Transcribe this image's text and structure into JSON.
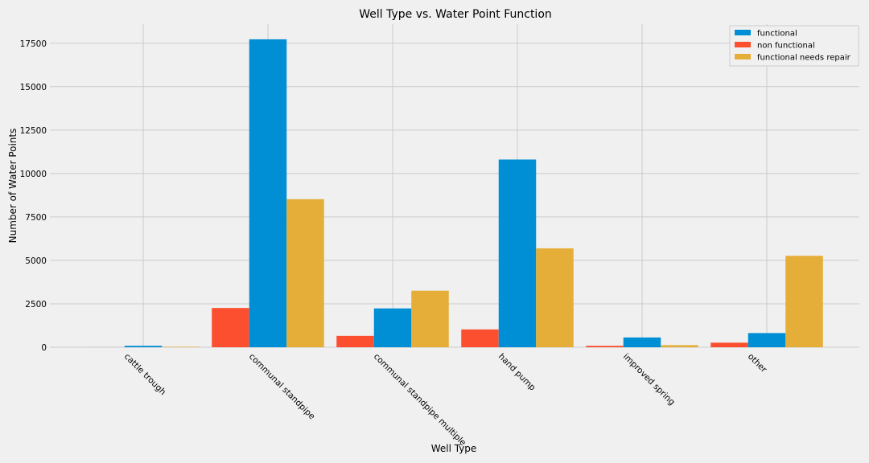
{
  "chart_data": {
    "type": "bar",
    "title": "Well Type vs. Water Point Function",
    "xlabel": "Well Type",
    "ylabel": "Number of Water Points",
    "categories": [
      "cattle trough",
      "communal standpipe",
      "communal standpipe multiple",
      "hand pump",
      "improved spring",
      "other"
    ],
    "series": [
      {
        "name": "functional",
        "color": "#008fd5",
        "values": [
          84,
          17726,
          2235,
          10805,
          563,
          816
        ]
      },
      {
        "name": "non functional",
        "color": "#fc4f30",
        "values": [
          2,
          2260,
          655,
          1026,
          84,
          264
        ]
      },
      {
        "name": "functional needs repair",
        "color": "#e5ae38",
        "values": [
          30,
          8523,
          3253,
          5694,
          120,
          5265
        ]
      }
    ],
    "yticks": [
      0,
      2500,
      5000,
      7500,
      10000,
      12500,
      15000,
      17500
    ],
    "ylim": [
      0,
      18600
    ],
    "grid": true,
    "legend_position": "top-right"
  }
}
